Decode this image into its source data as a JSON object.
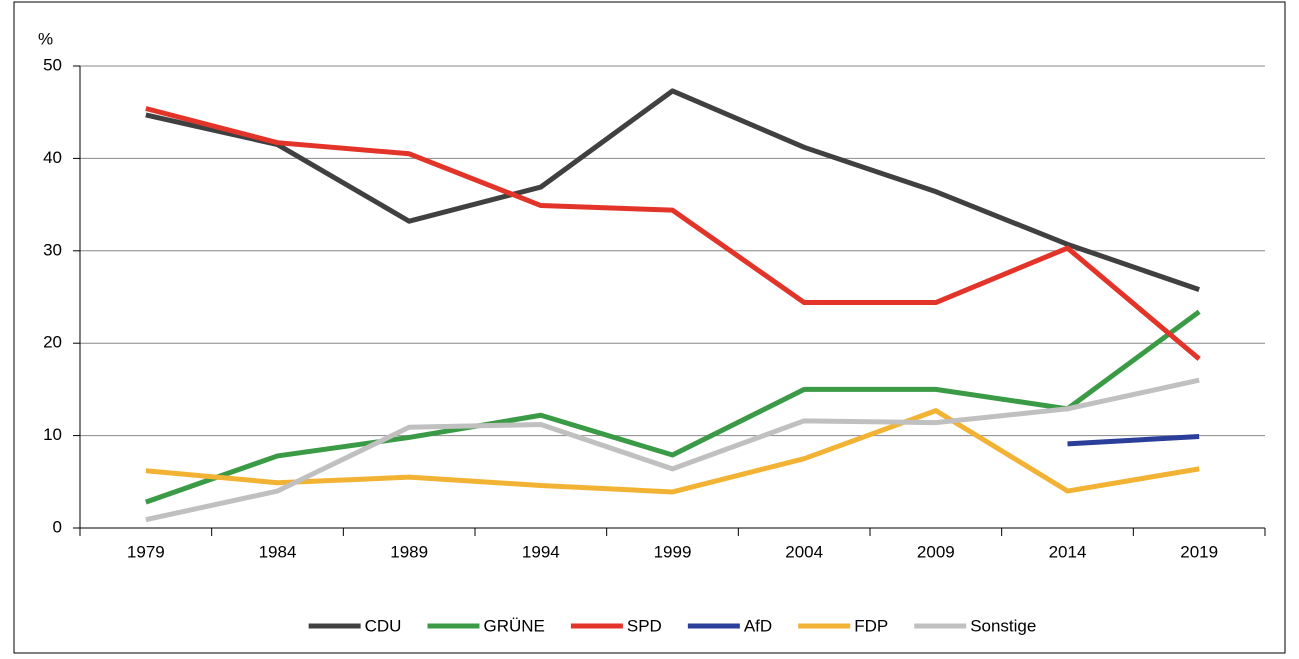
{
  "chart_data": {
    "type": "line",
    "y_label": "%",
    "categories": [
      "1979",
      "1984",
      "1989",
      "1994",
      "1999",
      "2004",
      "2009",
      "2014",
      "2019"
    ],
    "series": [
      {
        "name": "CDU",
        "color": "#404040",
        "values": [
          44.7,
          41.5,
          33.2,
          36.9,
          47.3,
          41.2,
          36.4,
          30.7,
          25.8
        ]
      },
      {
        "name": "GRÜNE",
        "color": "#3a9a45",
        "values": [
          2.8,
          7.8,
          9.8,
          12.2,
          7.9,
          15.0,
          15.0,
          12.9,
          23.4
        ]
      },
      {
        "name": "SPD",
        "color": "#e3342a",
        "values": [
          45.4,
          41.7,
          40.5,
          34.9,
          34.4,
          24.4,
          24.4,
          30.3,
          18.3
        ]
      },
      {
        "name": "AfD",
        "color": "#2a3e9a",
        "values": [
          null,
          null,
          null,
          null,
          null,
          null,
          null,
          9.1,
          9.9
        ]
      },
      {
        "name": "FDP",
        "color": "#f2b233",
        "values": [
          6.2,
          4.9,
          5.5,
          4.6,
          3.9,
          7.5,
          12.7,
          4.0,
          6.4
        ]
      },
      {
        "name": "Sonstige",
        "color": "#c0c0c0",
        "values": [
          0.9,
          4.0,
          10.9,
          11.2,
          6.4,
          11.6,
          11.4,
          12.9,
          16.0
        ]
      }
    ],
    "ylim": [
      0,
      50
    ],
    "yticks": [
      0,
      10,
      20,
      30,
      40,
      50
    ],
    "grid": true,
    "legend": "bottom"
  }
}
